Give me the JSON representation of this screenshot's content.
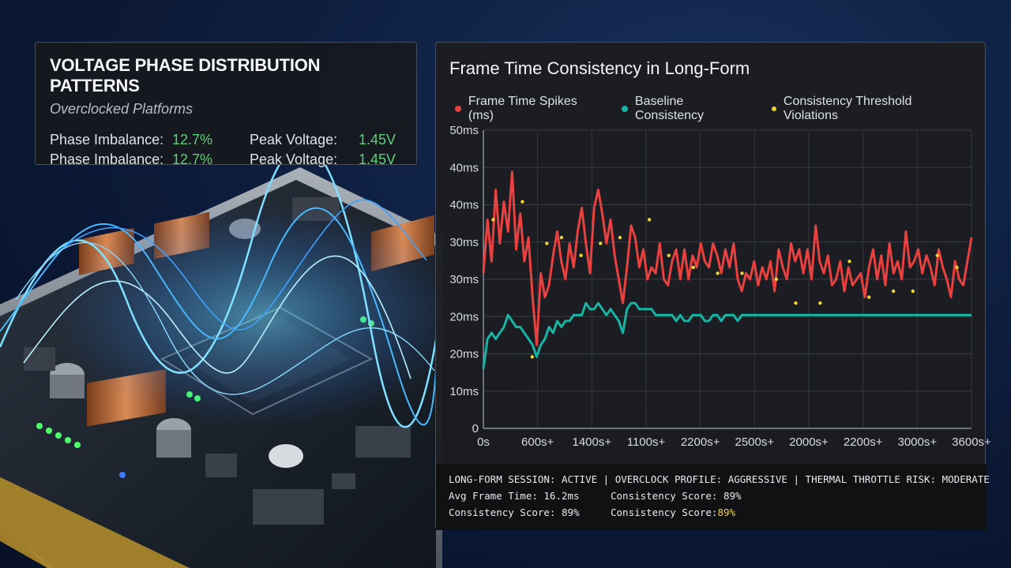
{
  "voltage_panel": {
    "title": "VOLTAGE PHASE DISTRIBUTION PATTERNS",
    "subtitle": "Overclocked Platforms",
    "rows": [
      {
        "label1": "Phase Imbalance:",
        "value1": "12.7%",
        "label2": "Peak Voltage:",
        "value2": "1.45V"
      },
      {
        "label1": "Phase Imbalance:",
        "value1": "12.7%",
        "label2": "Peak Voltage:",
        "value2": "1.45V"
      }
    ]
  },
  "chart_panel": {
    "title": "Frame Time Consistency in Long-Form",
    "status_line": "LONG-FORM SESSION: ACTIVE | OVERCLOCK PROFILE: AGGRESSIVE | THERMAL THROTTLE RISK: MODERATE",
    "stats": [
      {
        "left": "Avg Frame Time: 16.2ms",
        "right": "Consistency Score: 89%"
      },
      {
        "left": "Consistency Score: 89%",
        "right_label": "Consistency Score: ",
        "right_value": "89%"
      }
    ]
  },
  "colors": {
    "spikes": "#e8413f",
    "baseline": "#17b3a3",
    "violations": "#f1d232",
    "positive": "#5fd07a",
    "highlight": "#f1d34a"
  },
  "chart_data": {
    "type": "line",
    "title": "Frame Time Consistency in Long-Form",
    "y_tick_labels": [
      "0",
      "10ms",
      "20ms",
      "20ms",
      "30ms",
      "30ms",
      "40ms",
      "40ms",
      "50ms"
    ],
    "x_tick_labels": [
      "0s",
      "600s+",
      "1400s+",
      "1100s+",
      "2200s+",
      "2500s+",
      "2000s+",
      "2200s+",
      "3000s+",
      "3600s+"
    ],
    "ylim": [
      0,
      50
    ],
    "grid": true,
    "legend_position": "top",
    "series": [
      {
        "name": "Frame Time Spikes (ms)",
        "color": "#e8413f",
        "values": [
          26,
          35,
          28,
          40,
          31,
          38,
          33,
          43,
          30,
          36,
          28,
          32,
          22,
          14,
          26,
          22,
          24,
          29,
          33,
          28,
          25,
          31,
          27,
          33,
          37,
          31,
          26,
          37,
          40,
          36,
          31,
          35,
          29,
          25,
          21,
          27,
          34,
          32,
          27,
          30,
          25,
          27,
          26,
          31,
          25,
          24,
          28,
          30,
          25,
          30,
          25,
          29,
          27,
          31,
          28,
          27,
          31,
          29,
          26,
          30,
          27,
          31,
          25,
          23,
          26,
          25,
          28,
          24,
          27,
          25,
          28,
          23,
          30,
          27,
          25,
          31,
          28,
          30,
          26,
          30,
          25,
          34,
          28,
          26,
          29,
          24,
          25,
          28,
          23,
          27,
          24,
          25,
          26,
          22,
          27,
          30,
          25,
          29,
          24,
          31,
          26,
          28,
          25,
          33,
          27,
          28,
          30,
          26,
          29,
          27,
          24,
          30,
          27,
          25,
          22,
          28,
          25,
          24,
          28,
          32
        ]
      },
      {
        "name": "Baseline Consistency",
        "color": "#17b3a3",
        "values": [
          10,
          15,
          16,
          15,
          16,
          17,
          19,
          18,
          17,
          17,
          16,
          15,
          14,
          12,
          14,
          15,
          17,
          16,
          18,
          17,
          18,
          18,
          19,
          19,
          19,
          21,
          20,
          20,
          21,
          20,
          19,
          20,
          19,
          18,
          16,
          20,
          21,
          21,
          20,
          20,
          20,
          20,
          19,
          19,
          19,
          19,
          19,
          18,
          19,
          18,
          18,
          19,
          19,
          19,
          18,
          18,
          19,
          19,
          18,
          19,
          19,
          19,
          18,
          19,
          19,
          19,
          19,
          19,
          19,
          19,
          19,
          19,
          19,
          19,
          19,
          19,
          19,
          19,
          19,
          19,
          19,
          19,
          19,
          19,
          19,
          19,
          19,
          19,
          19,
          19,
          19,
          19,
          19,
          19,
          19,
          19,
          19,
          19,
          19,
          19,
          19,
          19,
          19,
          19,
          19,
          19,
          19,
          19,
          19,
          19,
          19,
          19,
          19,
          19,
          19,
          19,
          19,
          19,
          19,
          19
        ]
      },
      {
        "name": "Consistency Threshold Violations",
        "color": "#f1d232",
        "points": [
          [
            0.02,
            35
          ],
          [
            0.08,
            38
          ],
          [
            0.13,
            31
          ],
          [
            0.16,
            32
          ],
          [
            0.2,
            29
          ],
          [
            0.24,
            31
          ],
          [
            0.28,
            32
          ],
          [
            0.34,
            35
          ],
          [
            0.38,
            29
          ],
          [
            0.43,
            27
          ],
          [
            0.48,
            26
          ],
          [
            0.53,
            26
          ],
          [
            0.6,
            25
          ],
          [
            0.64,
            21
          ],
          [
            0.69,
            21
          ],
          [
            0.75,
            28
          ],
          [
            0.79,
            22
          ],
          [
            0.84,
            23
          ],
          [
            0.88,
            23
          ],
          [
            0.93,
            29
          ],
          [
            0.97,
            27
          ],
          [
            0.1,
            12
          ]
        ]
      }
    ]
  }
}
